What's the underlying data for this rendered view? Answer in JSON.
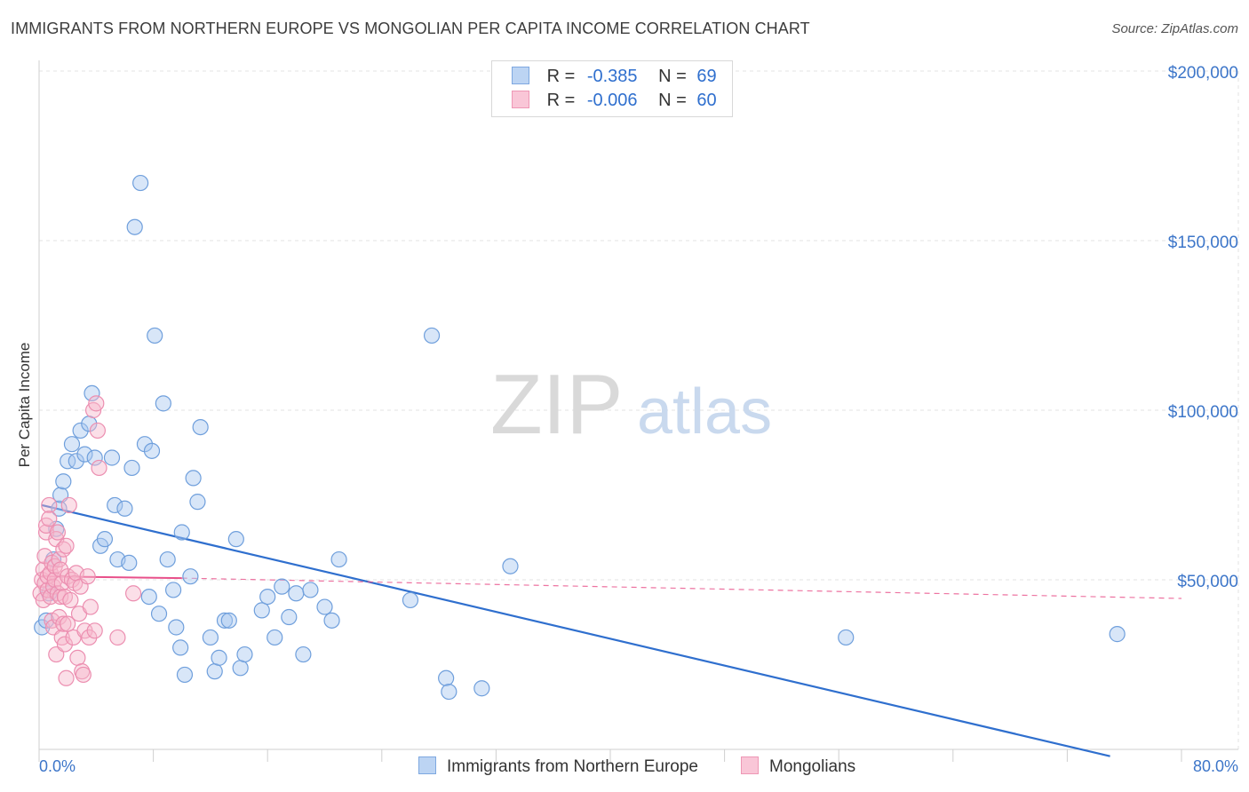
{
  "title": "IMMIGRANTS FROM NORTHERN EUROPE VS MONGOLIAN PER CAPITA INCOME CORRELATION CHART",
  "source": "Source: ZipAtlas.com",
  "watermark": {
    "zip": "ZIP",
    "atlas": "atlas"
  },
  "colors": {
    "blue": "#2f6fce",
    "blue_fill": "#a9c8f0",
    "pink": "#e8508a",
    "pink_fill": "#f6b8cd",
    "grid": "#e3e3e3",
    "axis_text": "#3d76c9"
  },
  "legend": {
    "rows": [
      {
        "r_label": "R =",
        "r_value": "-0.385",
        "n_label": "N =",
        "n_value": "69"
      },
      {
        "r_label": "R =",
        "r_value": "-0.006",
        "n_label": "N =",
        "n_value": "60"
      }
    ]
  },
  "chart_data": {
    "type": "scatter",
    "title": "IMMIGRANTS FROM NORTHERN EUROPE VS MONGOLIAN PER CAPITA INCOME CORRELATION CHART",
    "xlabel": "",
    "ylabel": "Per Capita Income",
    "xlim": [
      0,
      80
    ],
    "ylim": [
      0,
      200000
    ],
    "x_tick_labels": [
      "0.0%",
      "80.0%"
    ],
    "y_tick_labels": [
      "$50,000",
      "$100,000",
      "$150,000",
      "$200,000"
    ],
    "y_ticks": [
      50000,
      100000,
      150000,
      200000
    ],
    "legend_position": "bottom",
    "series": [
      {
        "name": "Immigrants from Northern Europe",
        "color": "blue",
        "r": -0.385,
        "n": 69,
        "trend": {
          "x0": 0.2,
          "y0": 72000,
          "x1": 75,
          "y1": -2000,
          "style": "solid"
        },
        "points": [
          [
            0.2,
            36000
          ],
          [
            0.5,
            38000
          ],
          [
            0.7,
            46000
          ],
          [
            1.0,
            56000
          ],
          [
            1.2,
            65000
          ],
          [
            1.4,
            71000
          ],
          [
            1.5,
            75000
          ],
          [
            1.7,
            79000
          ],
          [
            2.0,
            85000
          ],
          [
            2.3,
            90000
          ],
          [
            2.6,
            85000
          ],
          [
            2.9,
            94000
          ],
          [
            3.2,
            87000
          ],
          [
            3.5,
            96000
          ],
          [
            3.7,
            105000
          ],
          [
            3.9,
            86000
          ],
          [
            4.3,
            60000
          ],
          [
            4.6,
            62000
          ],
          [
            5.1,
            86000
          ],
          [
            5.3,
            72000
          ],
          [
            5.5,
            56000
          ],
          [
            6.0,
            71000
          ],
          [
            6.3,
            55000
          ],
          [
            6.5,
            83000
          ],
          [
            6.7,
            154000
          ],
          [
            7.1,
            167000
          ],
          [
            7.4,
            90000
          ],
          [
            7.7,
            45000
          ],
          [
            7.9,
            88000
          ],
          [
            8.1,
            122000
          ],
          [
            8.4,
            40000
          ],
          [
            8.7,
            102000
          ],
          [
            9.0,
            56000
          ],
          [
            9.4,
            47000
          ],
          [
            9.6,
            36000
          ],
          [
            9.9,
            30000
          ],
          [
            10.0,
            64000
          ],
          [
            10.2,
            22000
          ],
          [
            10.6,
            51000
          ],
          [
            10.8,
            80000
          ],
          [
            11.1,
            73000
          ],
          [
            11.3,
            95000
          ],
          [
            12.0,
            33000
          ],
          [
            12.3,
            23000
          ],
          [
            12.6,
            27000
          ],
          [
            13.0,
            38000
          ],
          [
            13.3,
            38000
          ],
          [
            13.8,
            62000
          ],
          [
            14.1,
            24000
          ],
          [
            14.4,
            28000
          ],
          [
            15.6,
            41000
          ],
          [
            16.0,
            45000
          ],
          [
            16.5,
            33000
          ],
          [
            17.0,
            48000
          ],
          [
            17.5,
            39000
          ],
          [
            18.0,
            46000
          ],
          [
            18.5,
            28000
          ],
          [
            19.0,
            47000
          ],
          [
            20.0,
            42000
          ],
          [
            20.5,
            38000
          ],
          [
            21.0,
            56000
          ],
          [
            26.0,
            44000
          ],
          [
            27.5,
            122000
          ],
          [
            28.5,
            21000
          ],
          [
            28.7,
            17000
          ],
          [
            31.0,
            18000
          ],
          [
            33.0,
            54000
          ],
          [
            56.5,
            33000
          ],
          [
            75.5,
            34000
          ]
        ]
      },
      {
        "name": "Mongolians",
        "color": "pink",
        "r": -0.006,
        "n": 60,
        "trend_solid": {
          "x0": 0.2,
          "y0": 51000,
          "x1": 10.0,
          "y1": 50500,
          "style": "solid"
        },
        "trend": {
          "x0": 10.0,
          "y0": 50500,
          "x1": 80.0,
          "y1": 44500,
          "style": "dashed"
        },
        "points": [
          [
            0.1,
            46000
          ],
          [
            0.2,
            50000
          ],
          [
            0.3,
            53000
          ],
          [
            0.3,
            44000
          ],
          [
            0.4,
            57000
          ],
          [
            0.4,
            49000
          ],
          [
            0.5,
            64000
          ],
          [
            0.5,
            66000
          ],
          [
            0.6,
            47000
          ],
          [
            0.6,
            51000
          ],
          [
            0.7,
            72000
          ],
          [
            0.7,
            68000
          ],
          [
            0.8,
            45000
          ],
          [
            0.8,
            52000
          ],
          [
            0.9,
            55000
          ],
          [
            0.9,
            38000
          ],
          [
            1.0,
            36000
          ],
          [
            1.0,
            48000
          ],
          [
            1.1,
            50000
          ],
          [
            1.1,
            54000
          ],
          [
            1.2,
            62000
          ],
          [
            1.2,
            28000
          ],
          [
            1.3,
            46000
          ],
          [
            1.3,
            64000
          ],
          [
            1.4,
            39000
          ],
          [
            1.4,
            56000
          ],
          [
            1.5,
            45000
          ],
          [
            1.5,
            53000
          ],
          [
            1.6,
            49000
          ],
          [
            1.6,
            33000
          ],
          [
            1.7,
            59000
          ],
          [
            1.7,
            37000
          ],
          [
            1.8,
            45000
          ],
          [
            1.8,
            31000
          ],
          [
            1.9,
            60000
          ],
          [
            1.9,
            21000
          ],
          [
            2.0,
            37000
          ],
          [
            2.0,
            51000
          ],
          [
            2.1,
            72000
          ],
          [
            2.2,
            44000
          ],
          [
            2.3,
            50000
          ],
          [
            2.4,
            33000
          ],
          [
            2.5,
            49000
          ],
          [
            2.6,
            52000
          ],
          [
            2.7,
            27000
          ],
          [
            2.8,
            40000
          ],
          [
            2.9,
            48000
          ],
          [
            3.0,
            23000
          ],
          [
            3.1,
            22000
          ],
          [
            3.2,
            35000
          ],
          [
            3.4,
            51000
          ],
          [
            3.5,
            33000
          ],
          [
            3.6,
            42000
          ],
          [
            3.8,
            100000
          ],
          [
            3.9,
            35000
          ],
          [
            4.0,
            102000
          ],
          [
            4.1,
            94000
          ],
          [
            4.2,
            83000
          ],
          [
            5.5,
            33000
          ],
          [
            6.6,
            46000
          ]
        ]
      }
    ]
  },
  "bottom_legend": {
    "blue_label": "Immigrants from Northern Europe",
    "pink_label": "Mongolians"
  }
}
